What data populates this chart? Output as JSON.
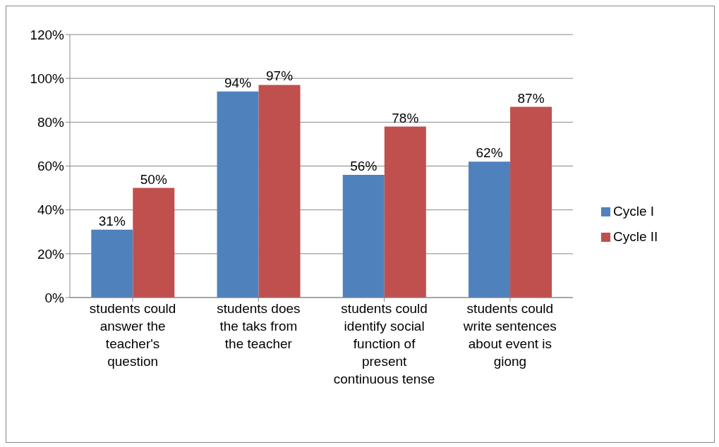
{
  "chart_data": {
    "type": "bar",
    "categories": [
      "students could answer the teacher's question",
      "students does the taks from the teacher",
      "students could identify social function of present continuous tense",
      "students could write sentences about event is giong"
    ],
    "series": [
      {
        "name": "Cycle I",
        "color": "#4f81bd",
        "values": [
          31,
          94,
          56,
          62
        ],
        "value_labels": [
          "31%",
          "94%",
          "56%",
          "62%"
        ]
      },
      {
        "name": "Cycle II",
        "color": "#c0504d",
        "values": [
          50,
          97,
          78,
          87
        ],
        "value_labels": [
          "50%",
          "97%",
          "78%",
          "87%"
        ]
      }
    ],
    "ylim": [
      0,
      120
    ],
    "yticks": [
      {
        "value": 0,
        "label": "0%"
      },
      {
        "value": 20,
        "label": "20%"
      },
      {
        "value": 40,
        "label": "40%"
      },
      {
        "value": 60,
        "label": "60%"
      },
      {
        "value": 80,
        "label": "80%"
      },
      {
        "value": 100,
        "label": "100%"
      },
      {
        "value": 120,
        "label": "120%"
      }
    ],
    "grid": "y",
    "legend": "right"
  }
}
